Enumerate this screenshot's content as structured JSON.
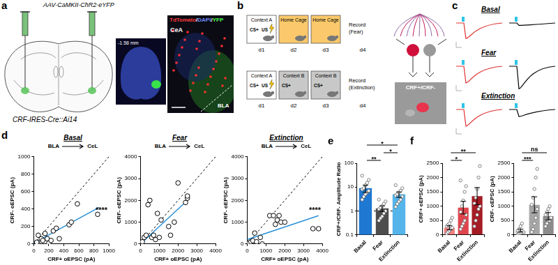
{
  "figure": {
    "a": {
      "label": "a",
      "virus": "AAV-CaMKII-ChR2-eYFP",
      "mouse": "CRF-IRES-Cre::Ai14",
      "coordinate": "-1.58 mm",
      "stain": [
        {
          "text": "TdTomato",
          "color": "#ff3b3b"
        },
        {
          "text": "/",
          "color": "#ffffff"
        },
        {
          "text": "DAPI",
          "color": "#6f8bff"
        },
        {
          "text": "/",
          "color": "#ffffff"
        },
        {
          "text": "YFP",
          "color": "#4cff4c"
        }
      ],
      "regions": [
        "CeA",
        "BLA"
      ]
    },
    "b": {
      "label": "b",
      "cell_label": "CRF+/CRF-",
      "rows": [
        {
          "days": [
            {
              "day": "d1",
              "context": "Context A",
              "color": "#ffffff",
              "cues": [
                "CS+",
                "US"
              ]
            },
            {
              "day": "d2",
              "context": "Home Cage",
              "color": "#fbc96b",
              "cues": []
            },
            {
              "day": "d3",
              "context": "Home Cage",
              "color": "#fbc96b",
              "cues": []
            }
          ],
          "record": [
            "Record",
            "(Fear)"
          ],
          "record_day": "d4"
        },
        {
          "days": [
            {
              "day": "d1",
              "context": "Context A",
              "color": "#ffffff",
              "cues": [
                "CS+",
                "US"
              ]
            },
            {
              "day": "d2",
              "context": "Context B",
              "color": "#c8c8c8",
              "cues": [
                "CS+"
              ]
            },
            {
              "day": "d3",
              "context": "Context B",
              "color": "#c8c8c8",
              "cues": [
                "CS+"
              ]
            }
          ],
          "record": [
            "Record",
            "(Extinction)"
          ],
          "record_day": "d4"
        }
      ]
    },
    "c": {
      "label": "c",
      "conditions": [
        "Basal",
        "Fear",
        "Extinction"
      ]
    }
  },
  "chart_data": [
    {
      "panel_label": "d",
      "type": "scatter",
      "title": "Basal",
      "subtitle": [
        "BLA",
        "CeL"
      ],
      "x": [
        50,
        40,
        60,
        100,
        120,
        150,
        180,
        200,
        230,
        260,
        300,
        340,
        470,
        500,
        580,
        850
      ],
      "y": [
        10,
        20,
        100,
        60,
        40,
        120,
        60,
        10,
        40,
        150,
        180,
        60,
        220,
        250,
        460,
        340
      ],
      "fit": {
        "x": [
          0,
          870
        ],
        "y": [
          10,
          420
        ],
        "color": "#2a8fd8"
      },
      "annotations": [
        {
          "text": "****"
        }
      ],
      "xlabel": "CRF+ oEPSC (pA)",
      "ylabel": "CRF- oEPSC (pA)",
      "xlim": [
        0,
        1000
      ],
      "ylim": [
        0,
        1000
      ],
      "xticks": [
        0,
        200,
        400,
        600,
        800,
        1000
      ],
      "yticks": [
        0,
        200,
        400,
        600,
        800,
        1000
      ],
      "color": "#000000",
      "marker": "open_circle",
      "grid": false
    },
    {
      "type": "scatter",
      "title": "Fear",
      "subtitle": [
        "BLA",
        "CeL"
      ],
      "x": [
        100,
        200,
        300,
        400,
        500,
        600,
        700,
        800,
        900,
        1000,
        1100,
        1500,
        1600,
        1800,
        2000,
        2400,
        2500,
        2500
      ],
      "y": [
        100,
        300,
        400,
        1800,
        2000,
        300,
        400,
        200,
        1400,
        300,
        1100,
        800,
        400,
        1000,
        2800,
        1900,
        2100,
        2200
      ],
      "fit": {
        "x": [
          0,
          2500
        ],
        "y": [
          0,
          2000
        ],
        "color": "#2a8fd8"
      },
      "xlabel": "CRF+ oEPSC (pA)",
      "ylabel": "CRF- oEPSC (pA)",
      "xlim": [
        0,
        4000
      ],
      "ylim": [
        0,
        4000
      ],
      "xticks": [
        0,
        1000,
        2000,
        3000,
        4000
      ],
      "yticks": [
        0,
        1000,
        2000,
        3000,
        4000
      ],
      "color": "#000000",
      "marker": "open_circle",
      "grid": false
    },
    {
      "type": "scatter",
      "title": "Extinction",
      "subtitle": [
        "BLA",
        "CeL"
      ],
      "x": [
        100,
        200,
        300,
        400,
        500,
        700,
        800,
        1200,
        1400,
        1500,
        1600,
        1700,
        1800,
        2000,
        3500,
        3800
      ],
      "y": [
        50,
        100,
        150,
        500,
        100,
        300,
        0,
        1300,
        1300,
        900,
        1100,
        1300,
        1000,
        1000,
        700,
        700
      ],
      "fit": {
        "x": [
          0,
          3800
        ],
        "y": [
          200,
          1300
        ],
        "color": "#2a8fd8"
      },
      "annotations": [
        {
          "text": "****"
        }
      ],
      "xlabel": "CRF+ oEPSC (pA)",
      "ylabel": "CRF- oEPSC (pA)",
      "xlim": [
        0,
        4000
      ],
      "ylim": [
        0,
        4000
      ],
      "xticks": [
        0,
        1000,
        2000,
        3000,
        4000
      ],
      "yticks": [
        0,
        1000,
        2000,
        3000,
        4000
      ],
      "color": "#000000",
      "marker": "open_circle",
      "grid": false
    },
    {
      "panel_label": "e",
      "type": "bar",
      "categories": [
        "Basal",
        "Fear",
        "Extinction"
      ],
      "values": [
        9,
        1.3,
        5
      ],
      "errors": [
        3,
        0.35,
        1.3
      ],
      "colors": [
        "#1f78d1",
        "#4d4d4d",
        "#55b4ea"
      ],
      "points": [
        [
          3,
          4,
          5,
          6,
          7,
          8,
          9,
          12,
          15,
          20,
          30
        ],
        [
          0.4,
          0.5,
          0.6,
          0.8,
          1,
          1.2,
          1.4,
          1.6,
          2,
          2.5,
          3
        ],
        [
          1.5,
          2,
          2.5,
          3,
          4,
          4.5,
          5,
          6,
          7,
          9,
          12
        ]
      ],
      "reference_line": 1,
      "log": "y",
      "ylim": [
        0.1,
        100
      ],
      "yticks": [
        0.1,
        1,
        10,
        100
      ],
      "ylabel": "CRF+/CRF- Amplitude Ratio",
      "significance": [
        {
          "from": 0,
          "to": 1,
          "label": "**"
        },
        {
          "from": 1,
          "to": 2,
          "label": "*"
        },
        {
          "from": 0,
          "to": 2,
          "label": "*"
        }
      ],
      "grid": false
    },
    {
      "panel_label": "f",
      "type": "bar",
      "categories": [
        "Basal",
        "Fear",
        "Extinction"
      ],
      "values": [
        250,
        950,
        1350
      ],
      "errors": [
        70,
        220,
        300
      ],
      "colors": [
        "#f08080",
        "#e0454e",
        "#a51c24"
      ],
      "points": [
        [
          50,
          100,
          150,
          200,
          250,
          300,
          350,
          400,
          500,
          600
        ],
        [
          200,
          300,
          400,
          500,
          700,
          800,
          1000,
          1200,
          1500,
          1700,
          1900
        ],
        [
          300,
          500,
          700,
          900,
          1000,
          1100,
          1300,
          1600,
          2000,
          2400
        ]
      ],
      "ylim": [
        0,
        2500
      ],
      "yticks": [
        0,
        500,
        1000,
        1500,
        2000,
        2500
      ],
      "ylabel": "CRF+ oEPSC (pA)",
      "significance": [
        {
          "from": 0,
          "to": 1,
          "label": "*"
        },
        {
          "from": 0,
          "to": 2,
          "label": "**"
        }
      ],
      "grid": false
    },
    {
      "type": "bar",
      "categories": [
        "Basal",
        "Fear",
        "Extinction"
      ],
      "values": [
        150,
        1050,
        650
      ],
      "errors": [
        50,
        280,
        130
      ],
      "colors": [
        "#d9d9d9",
        "#a6a6a6",
        "#8c8c8c"
      ],
      "points": [
        [
          20,
          50,
          60,
          80,
          100,
          150,
          200,
          300,
          400
        ],
        [
          100,
          200,
          400,
          600,
          900,
          1050,
          1300,
          1600,
          2000,
          2300
        ],
        [
          300,
          400,
          500,
          500,
          600,
          700,
          800,
          900,
          1000
        ]
      ],
      "ylim": [
        0,
        2500
      ],
      "yticks": [
        0,
        500,
        1000,
        1500,
        2000,
        2500
      ],
      "ylabel": "CRF- oEPSC (pA)",
      "significance": [
        {
          "from": 0,
          "to": 1,
          "label": "***"
        },
        {
          "from": 0,
          "to": 2,
          "label": "ns"
        }
      ],
      "grid": false
    }
  ]
}
